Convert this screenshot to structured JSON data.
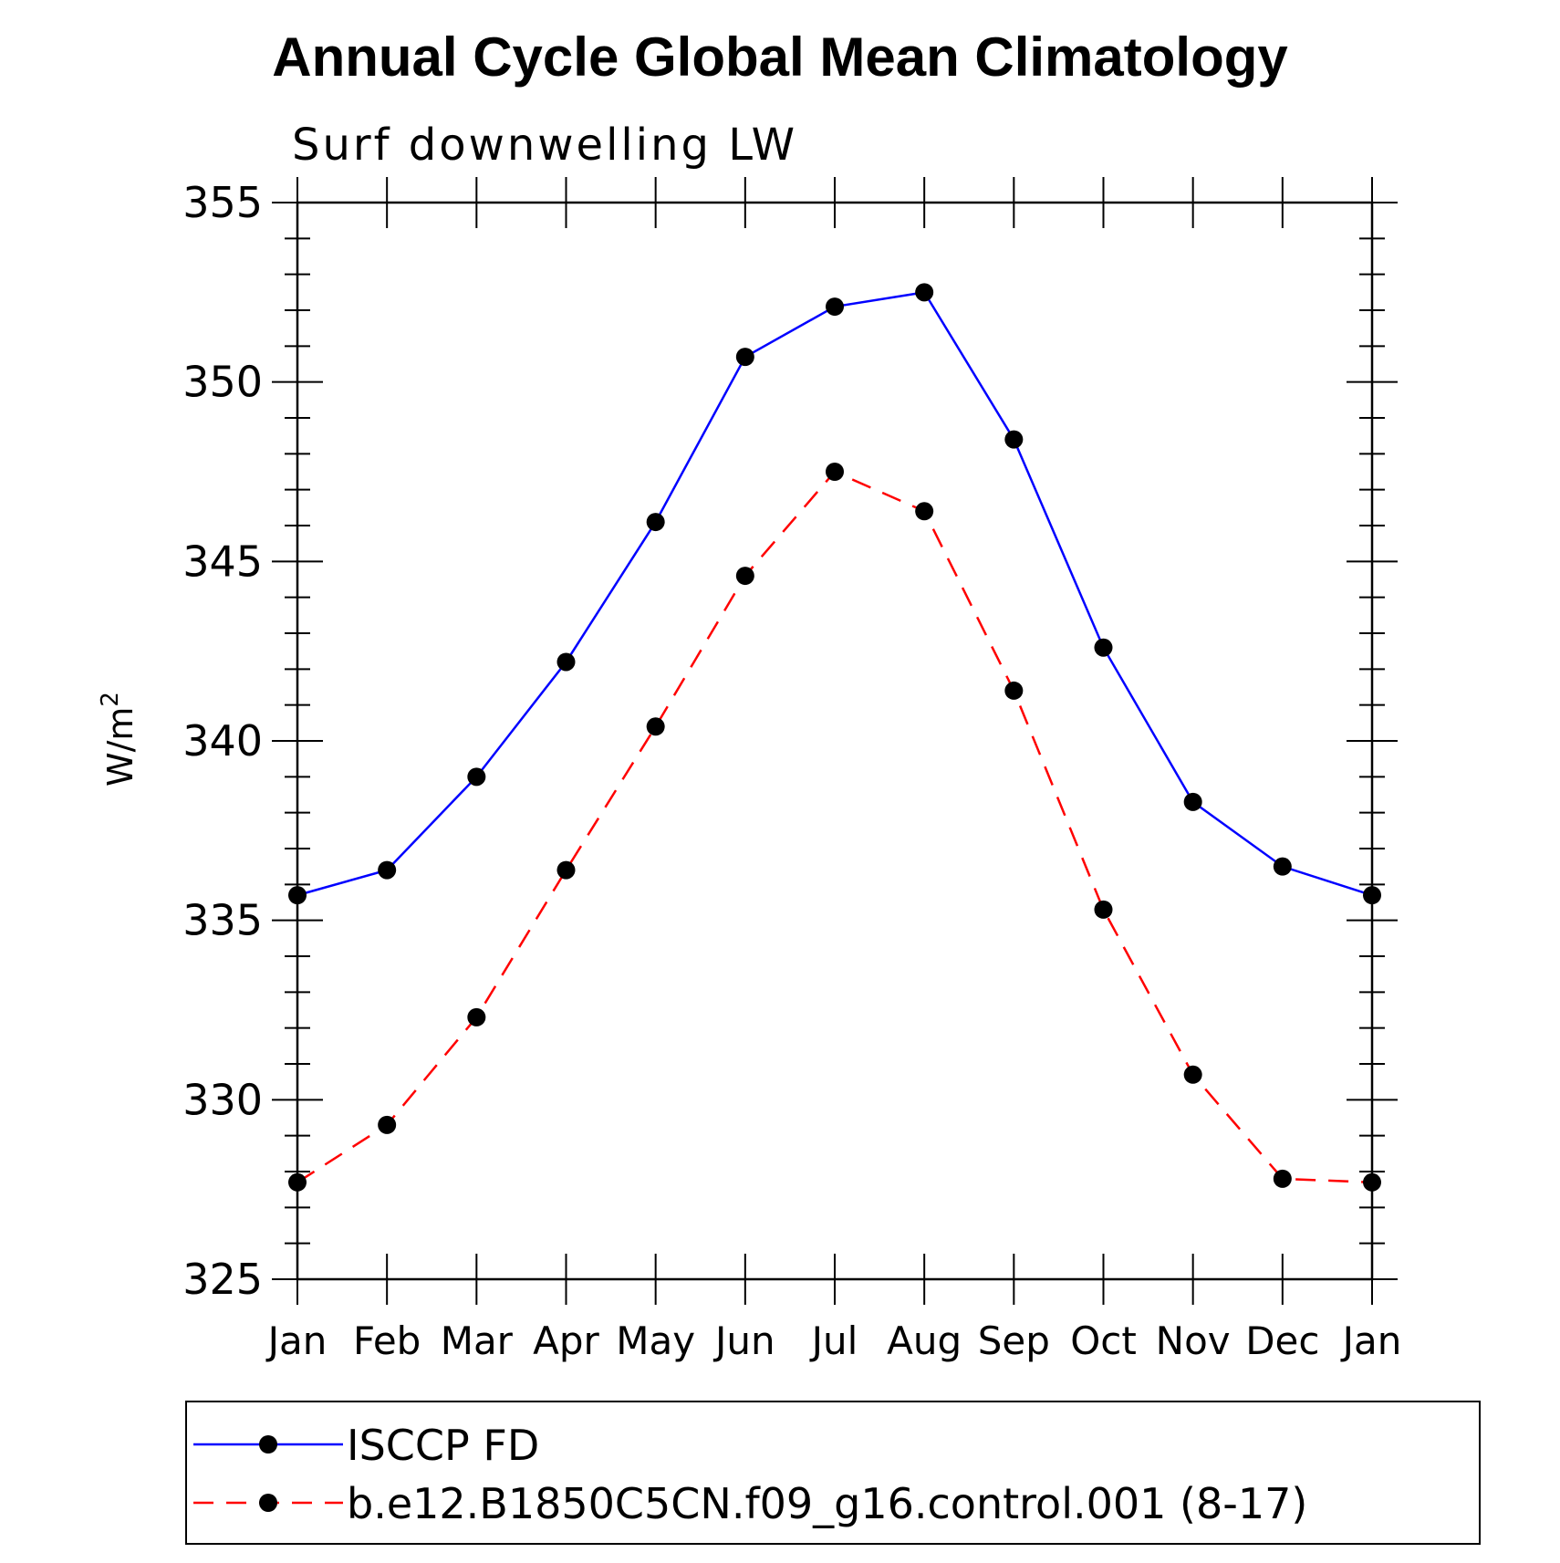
{
  "chart_data": {
    "type": "line",
    "title": "Annual Cycle Global Mean Climatology",
    "subtitle": "Surf downwelling LW",
    "xlabel": "",
    "ylabel": "W/m",
    "ylabel_superscript": "2",
    "ylim": [
      325,
      355
    ],
    "yticks": [
      "325",
      "330",
      "335",
      "340",
      "345",
      "350",
      "355"
    ],
    "categories": [
      "Jan",
      "Feb",
      "Mar",
      "Apr",
      "May",
      "Jun",
      "Jul",
      "Aug",
      "Sep",
      "Oct",
      "Nov",
      "Dec",
      "Jan"
    ],
    "grid": false,
    "legend_position": "bottom",
    "series": [
      {
        "name": "ISCCP FD",
        "color": "#0000ff",
        "dash": "solid",
        "marker": "filled-circle",
        "values": [
          335.7,
          336.4,
          339.0,
          342.2,
          346.1,
          350.7,
          352.1,
          352.5,
          348.4,
          342.6,
          338.3,
          336.5,
          335.7
        ]
      },
      {
        "name": "b.e12.B1850C5CN.f09_g16.control.001 (8-17)",
        "color": "#ff0000",
        "dash": "dashed",
        "marker": "filled-circle",
        "values": [
          327.7,
          329.3,
          332.3,
          336.4,
          340.4,
          344.6,
          347.5,
          346.4,
          341.4,
          335.3,
          330.7,
          327.8,
          327.7
        ]
      }
    ]
  }
}
